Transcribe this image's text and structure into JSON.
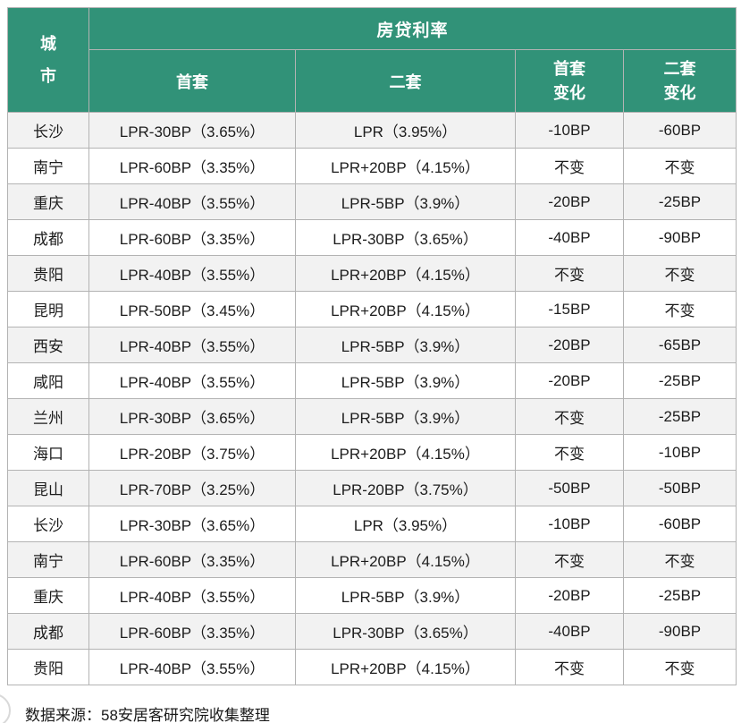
{
  "chart_data": {
    "type": "table",
    "title": "房贷利率",
    "columns": [
      "城市",
      "首套",
      "二套",
      "首套变化",
      "二套变化"
    ],
    "rows": [
      [
        "长沙",
        "LPR-30BP（3.65%）",
        "LPR（3.95%）",
        "-10BP",
        "-60BP"
      ],
      [
        "南宁",
        "LPR-60BP（3.35%）",
        "LPR+20BP（4.15%）",
        "不变",
        "不变"
      ],
      [
        "重庆",
        "LPR-40BP（3.55%）",
        "LPR-5BP（3.9%）",
        "-20BP",
        "-25BP"
      ],
      [
        "成都",
        "LPR-60BP（3.35%）",
        "LPR-30BP（3.65%）",
        "-40BP",
        "-90BP"
      ],
      [
        "贵阳",
        "LPR-40BP（3.55%）",
        "LPR+20BP（4.15%）",
        "不变",
        "不变"
      ],
      [
        "昆明",
        "LPR-50BP（3.45%）",
        "LPR+20BP（4.15%）",
        "-15BP",
        "不变"
      ],
      [
        "西安",
        "LPR-40BP（3.55%）",
        "LPR-5BP（3.9%）",
        "-20BP",
        "-65BP"
      ],
      [
        "咸阳",
        "LPR-40BP（3.55%）",
        "LPR-5BP（3.9%）",
        "-20BP",
        "-25BP"
      ],
      [
        "兰州",
        "LPR-30BP（3.65%）",
        "LPR-5BP（3.9%）",
        "不变",
        "-25BP"
      ],
      [
        "海口",
        "LPR-20BP（3.75%）",
        "LPR+20BP（4.15%）",
        "不变",
        "-10BP"
      ],
      [
        "昆山",
        "LPR-70BP（3.25%）",
        "LPR-20BP（3.75%）",
        "-50BP",
        "-50BP"
      ],
      [
        "长沙",
        "LPR-30BP（3.65%）",
        "LPR（3.95%）",
        "-10BP",
        "-60BP"
      ],
      [
        "南宁",
        "LPR-60BP（3.35%）",
        "LPR+20BP（4.15%）",
        "不变",
        "不变"
      ],
      [
        "重庆",
        "LPR-40BP（3.55%）",
        "LPR-5BP（3.9%）",
        "-20BP",
        "-25BP"
      ],
      [
        "成都",
        "LPR-60BP（3.35%）",
        "LPR-30BP（3.65%）",
        "-40BP",
        "-90BP"
      ],
      [
        "贵阳",
        "LPR-40BP（3.55%）",
        "LPR+20BP（4.15%）",
        "不变",
        "不变"
      ]
    ],
    "source": "数据来源：58安居客研究院收集整理",
    "layout": {
      "grid": "on",
      "alternating_rows": true,
      "header_position": "top"
    }
  },
  "header": {
    "city_line1": "城",
    "city_line2": "市",
    "group_title": "房贷利率",
    "first": "首套",
    "second": "二套",
    "first_change_line1": "首套",
    "first_change_line2": "变化",
    "second_change_line1": "二套",
    "second_change_line2": "变化"
  },
  "footer": {
    "source": "数据来源：58安居客研究院收集整理"
  },
  "colors": {
    "header_green": "#319278",
    "grid_line": "#b3b3b3",
    "row_alt": "#f2f2f2",
    "header_text": "#ffffff",
    "body_text": "#1c1c1c"
  }
}
